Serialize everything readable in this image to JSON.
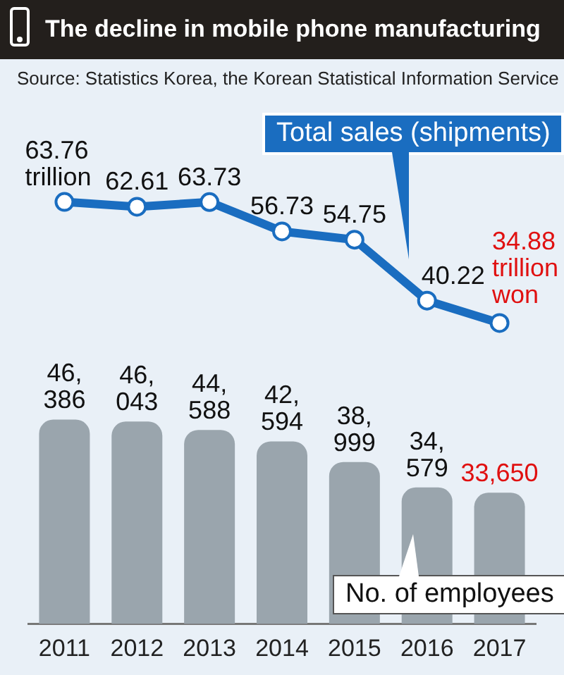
{
  "chart_data": [
    {
      "type": "line",
      "title": "The decline in mobile phone manufacturing",
      "annotations": [
        "Source: Statistics Korea, the Korean Statistical Information Service"
      ],
      "categories": [
        "2011",
        "2012",
        "2013",
        "2014",
        "2015",
        "2016",
        "2017"
      ],
      "series": [
        {
          "name": "Total sales (shipments)",
          "color": "#1a6dc0",
          "values": [
            63.76,
            62.61,
            63.73,
            56.73,
            54.75,
            40.22,
            34.88
          ],
          "value_labels": [
            "63.76 trillion",
            "62.61",
            "63.73",
            "56.73",
            "54.75",
            "40.22",
            "34.88 trillion won"
          ]
        }
      ],
      "marker": "circle",
      "legend": false,
      "grid": false,
      "tick_labels": false
    },
    {
      "type": "bar",
      "categories": [
        "2011",
        "2012",
        "2013",
        "2014",
        "2015",
        "2016",
        "2017"
      ],
      "series": [
        {
          "name": "No. of employees",
          "color": "#9aa5ad",
          "values": [
            46386,
            46043,
            44588,
            42594,
            38999,
            34579,
            33650
          ],
          "value_labels": [
            "46,386",
            "46,043",
            "44,588",
            "42,594",
            "38,999",
            "34,579",
            "33,650"
          ]
        }
      ],
      "legend": false,
      "grid": false,
      "tick_labels": "x"
    }
  ]
}
